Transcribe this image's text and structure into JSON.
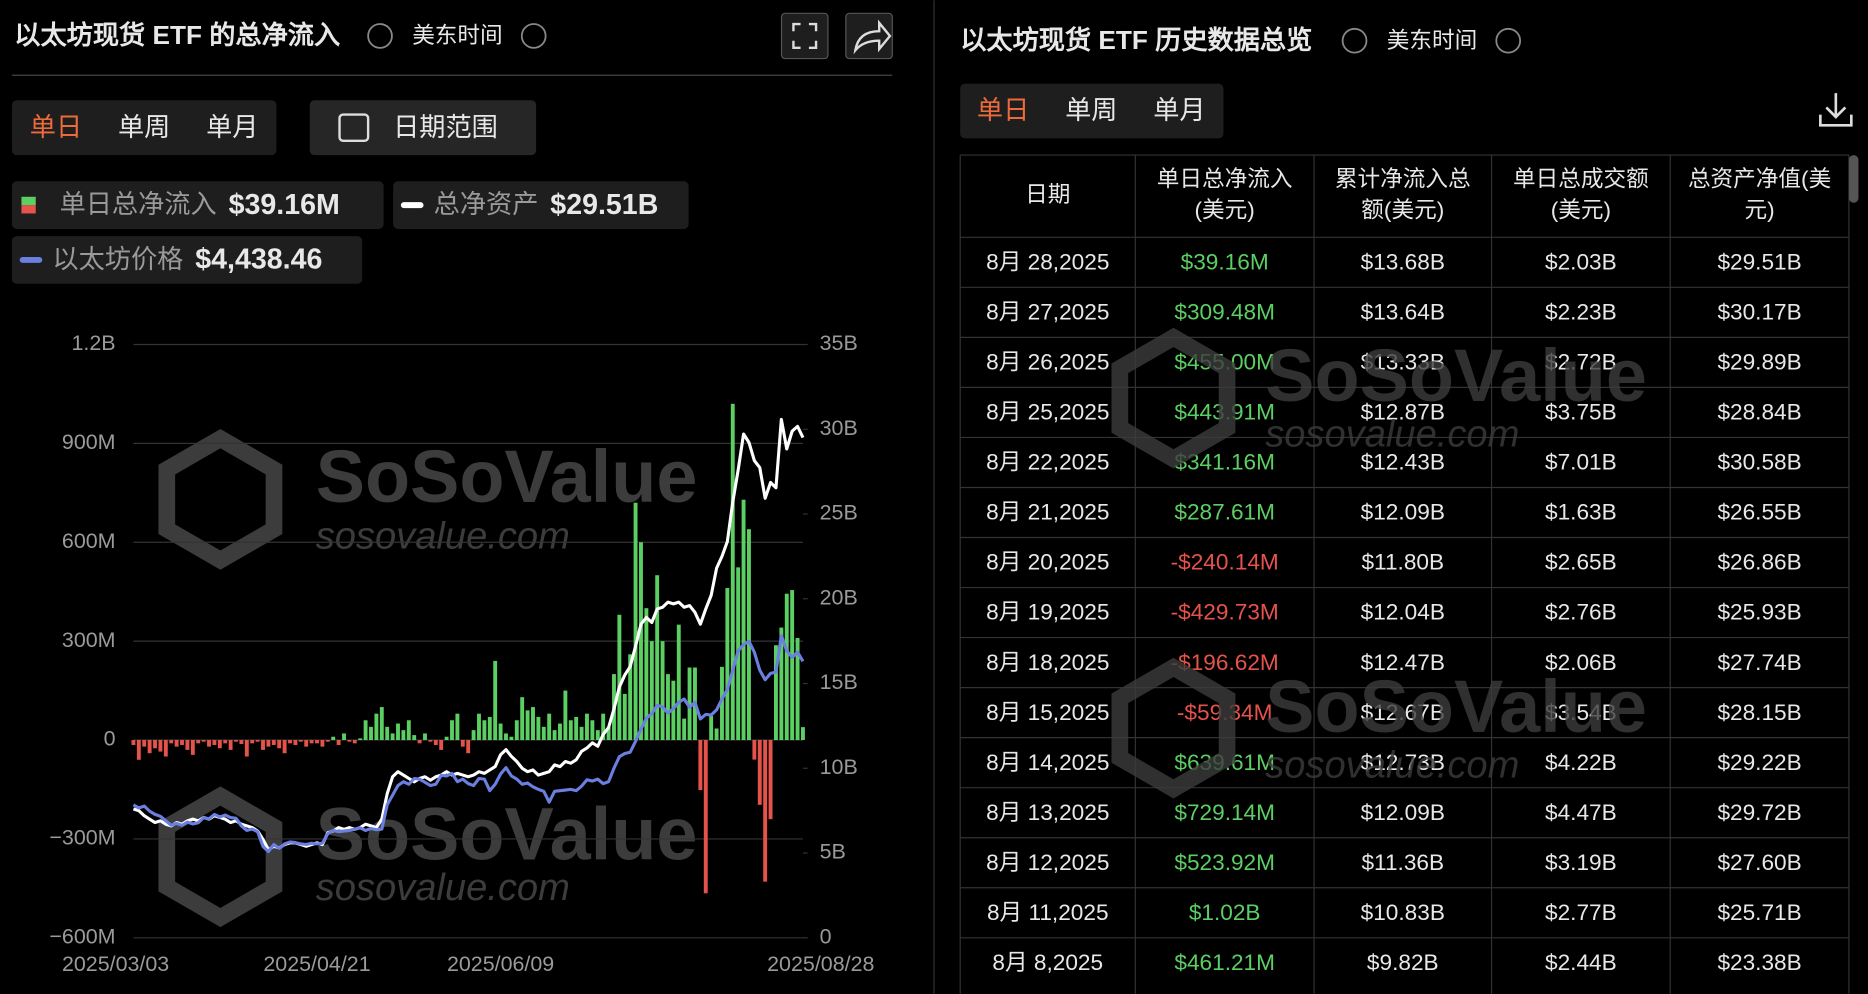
{
  "left_panel": {
    "title": "以太坊现货 ETF 的总净流入",
    "timezone": "美东时间",
    "tabs": [
      "单日",
      "单周",
      "单月"
    ],
    "date_range": "日期范围"
  },
  "watermark": {
    "brand": "SoSoValue",
    "url": "sosovalue.com"
  },
  "chart_data": {
    "type": "bar",
    "categories": [
      "2025/03/03",
      null,
      null,
      null,
      null,
      null,
      null,
      null,
      null,
      null,
      null,
      null,
      null,
      null,
      null,
      null,
      null,
      null,
      null,
      null,
      null,
      null,
      null,
      null,
      null,
      null,
      null,
      null,
      null,
      null,
      null,
      null,
      null,
      null,
      "2025/04/21",
      null,
      null,
      null,
      null,
      null,
      null,
      null,
      null,
      null,
      null,
      null,
      null,
      null,
      null,
      null,
      null,
      null,
      null,
      null,
      null,
      null,
      null,
      null,
      null,
      null,
      null,
      null,
      null,
      null,
      null,
      null,
      null,
      null,
      "2025/06/09",
      null,
      null,
      null,
      null,
      null,
      null,
      null,
      null,
      null,
      null,
      null,
      null,
      null,
      null,
      null,
      null,
      null,
      null,
      null,
      null,
      null,
      null,
      null,
      null,
      null,
      null,
      null,
      null,
      null,
      null,
      null,
      null,
      null,
      null,
      null,
      null,
      null,
      null,
      null,
      null,
      null,
      null,
      null,
      null,
      null,
      null,
      null,
      null,
      null,
      null,
      null,
      null,
      null,
      null,
      null,
      "2025/08/28"
    ],
    "series": [
      {
        "name": "单日总净流入",
        "type": "bar",
        "color": "#5ccf63",
        "negative_color": "#e5534b",
        "latest_label": "$39.16M",
        "values": [
          -15,
          -60,
          -20,
          -40,
          -25,
          -35,
          -50,
          -10,
          -20,
          -15,
          -30,
          -45,
          -10,
          -5,
          -20,
          -15,
          -25,
          -10,
          -30,
          -5,
          -12,
          -50,
          -10,
          -5,
          -30,
          -20,
          -15,
          -25,
          -40,
          -10,
          -15,
          -5,
          -20,
          -10,
          -10,
          -20,
          -5,
          10,
          -15,
          20,
          -5,
          -10,
          5,
          60,
          40,
          80,
          100,
          40,
          20,
          50,
          30,
          60,
          15,
          -10,
          20,
          -5,
          -15,
          -30,
          10,
          60,
          80,
          -20,
          -40,
          30,
          80,
          60,
          70,
          240,
          50,
          20,
          10,
          60,
          130,
          90,
          100,
          70,
          40,
          80,
          30,
          50,
          150,
          60,
          70,
          40,
          80,
          60,
          30,
          80,
          40,
          200,
          380,
          140,
          260,
          720,
          600,
          400,
          300,
          500,
          300,
          200,
          180,
          350,
          65,
          220,
          220,
          -152,
          -465,
          73,
          35,
          222,
          461.21,
          1020,
          523.92,
          729.14,
          639.61,
          -59.34,
          -196.62,
          -429.73,
          -240.14,
          287.61,
          341.16,
          443.91,
          455.0,
          309.48,
          39.16
        ]
      },
      {
        "name": "总净资产",
        "type": "line",
        "axis": "y2",
        "color": "#ffffff",
        "latest_label": "$29.51B",
        "values": [
          7.6,
          7.5,
          7.2,
          7.0,
          6.8,
          6.9,
          6.7,
          6.6,
          6.8,
          6.7,
          6.9,
          7.0,
          6.9,
          7.1,
          7.0,
          7.2,
          7.1,
          7.0,
          6.8,
          6.9,
          6.7,
          6.6,
          6.5,
          6.3,
          5.8,
          5.2,
          5.4,
          5.3,
          5.5,
          5.6,
          5.6,
          5.5,
          5.4,
          5.5,
          5.6,
          5.5,
          6.2,
          6.3,
          6.5,
          6.4,
          6.5,
          6.4,
          6.5,
          6.7,
          6.6,
          6.5,
          7.0,
          8.5,
          9.5,
          9.8,
          9.6,
          9.4,
          9.2,
          9.4,
          9.5,
          9.3,
          9.5,
          9.6,
          9.8,
          9.6,
          9.7,
          9.6,
          9.5,
          9.6,
          9.8,
          9.7,
          9.9,
          10.1,
          10.8,
          11.1,
          10.7,
          10.4,
          10.0,
          9.8,
          9.9,
          9.6,
          9.7,
          9.8,
          10.2,
          10.1,
          10.4,
          10.3,
          10.5,
          11.0,
          11.2,
          11.5,
          11.3,
          12.0,
          12.4,
          13.5,
          14.8,
          15.5,
          16.0,
          17.2,
          18.5,
          18.9,
          18.6,
          19.4,
          19.5,
          19.8,
          19.7,
          19.8,
          19.5,
          19.6,
          19.2,
          18.5,
          19.4,
          20.2,
          21.8,
          22.5,
          23.38,
          25.71,
          27.6,
          29.72,
          29.22,
          28.15,
          27.74,
          25.93,
          26.86,
          26.55,
          30.58,
          28.84,
          29.89,
          30.17,
          29.51
        ]
      },
      {
        "name": "以太坊价格",
        "type": "line",
        "axis": "y3",
        "color": "#6b7fe0",
        "latest_label": "$4,438.46",
        "values": [
          2200,
          2150,
          2180,
          2100,
          2050,
          2020,
          1950,
          1880,
          1910,
          1880,
          1930,
          1900,
          1920,
          2000,
          1980,
          2050,
          2010,
          2040,
          2000,
          1990,
          1870,
          1800,
          1820,
          1780,
          1550,
          1470,
          1580,
          1520,
          1590,
          1620,
          1610,
          1590,
          1580,
          1600,
          1590,
          1600,
          1750,
          1800,
          1780,
          1790,
          1800,
          1820,
          1840,
          1800,
          1830,
          1810,
          1820,
          2200,
          2350,
          2500,
          2560,
          2520,
          2610,
          2600,
          2550,
          2500,
          2520,
          2660,
          2650,
          2690,
          2560,
          2600,
          2530,
          2500,
          2610,
          2600,
          2420,
          2520,
          2680,
          2780,
          2650,
          2600,
          2520,
          2540,
          2480,
          2440,
          2410,
          2240,
          2410,
          2420,
          2430,
          2440,
          2420,
          2490,
          2590,
          2570,
          2600,
          2530,
          2560,
          2770,
          2950,
          3000,
          3020,
          3190,
          3380,
          3550,
          3620,
          3750,
          3730,
          3630,
          3700,
          3800,
          3850,
          3720,
          3800,
          3540,
          3610,
          3600,
          3680,
          3850,
          4000,
          4300,
          4600,
          4700,
          4750,
          4580,
          4300,
          4150,
          4250,
          4270,
          4840,
          4600,
          4500,
          4580,
          4438.46
        ]
      }
    ],
    "ylim": [
      -600,
      1200
    ],
    "yticks": [
      {
        "value": -600,
        "label": "−600M"
      },
      {
        "value": -300,
        "label": "−300M"
      },
      0,
      {
        "value": 300,
        "label": "300M"
      },
      {
        "value": 600,
        "label": "600M"
      },
      {
        "value": 900,
        "label": "900M"
      },
      {
        "value": 1200,
        "label": "1.2B"
      }
    ],
    "y2lim": [
      0,
      35
    ],
    "y2ticks": [
      0,
      {
        "value": 5,
        "label": "5B"
      },
      {
        "value": 10,
        "label": "10B"
      },
      {
        "value": 15,
        "label": "15B"
      },
      {
        "value": 20,
        "label": "20B"
      },
      {
        "value": 25,
        "label": "25B"
      },
      {
        "value": 30,
        "label": "30B"
      },
      {
        "value": 35,
        "label": "35B"
      }
    ],
    "y3lim": [
      125,
      9380
    ],
    "grid": true
  },
  "right_panel": {
    "title": "以太坊现货 ETF 历史数据总览",
    "timezone": "美东时间",
    "tabs": [
      "单日",
      "单周",
      "单月"
    ],
    "table": {
      "columns": [
        [
          "日期"
        ],
        [
          "单日总净流入",
          "(美元)"
        ],
        [
          "累计净流入总",
          "额(美元)"
        ],
        [
          "单日总成交额",
          "(美元)"
        ],
        [
          "总资产净值(美",
          "元)"
        ]
      ],
      "rows": [
        [
          "8月 28,2025",
          "$39.16M",
          "$13.68B",
          "$2.03B",
          "$29.51B"
        ],
        [
          "8月 27,2025",
          "$309.48M",
          "$13.64B",
          "$2.23B",
          "$30.17B"
        ],
        [
          "8月 26,2025",
          "$455.00M",
          "$13.33B",
          "$2.72B",
          "$29.89B"
        ],
        [
          "8月 25,2025",
          "$443.91M",
          "$12.87B",
          "$3.75B",
          "$28.84B"
        ],
        [
          "8月 22,2025",
          "$341.16M",
          "$12.43B",
          "$7.01B",
          "$30.58B"
        ],
        [
          "8月 21,2025",
          "$287.61M",
          "$12.09B",
          "$1.63B",
          "$26.55B"
        ],
        [
          "8月 20,2025",
          "-$240.14M",
          "$11.80B",
          "$2.65B",
          "$26.86B"
        ],
        [
          "8月 19,2025",
          "-$429.73M",
          "$12.04B",
          "$2.76B",
          "$25.93B"
        ],
        [
          "8月 18,2025",
          "-$196.62M",
          "$12.47B",
          "$2.06B",
          "$27.74B"
        ],
        [
          "8月 15,2025",
          "-$59.34M",
          "$12.67B",
          "$3.54B",
          "$28.15B"
        ],
        [
          "8月 14,2025",
          "$639.61M",
          "$12.73B",
          "$4.22B",
          "$29.22B"
        ],
        [
          "8月 13,2025",
          "$729.14M",
          "$12.09B",
          "$4.47B",
          "$29.72B"
        ],
        [
          "8月 12,2025",
          "$523.92M",
          "$11.36B",
          "$3.19B",
          "$27.60B"
        ],
        [
          "8月 11,2025",
          "$1.02B",
          "$10.83B",
          "$2.77B",
          "$25.71B"
        ],
        [
          "8月 8,2025",
          "$461.21M",
          "$9.82B",
          "$2.44B",
          "$23.38B"
        ]
      ]
    }
  }
}
